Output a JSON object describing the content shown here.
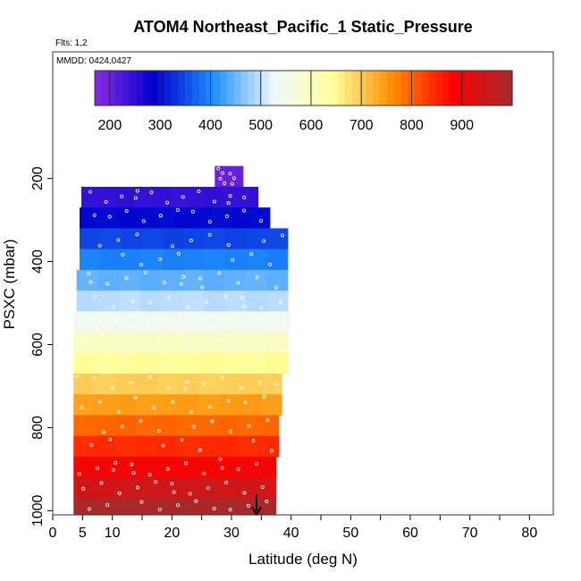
{
  "header": {
    "title": "ATOM4 Northeast_Pacific_1 Static_Pressure",
    "flights": "Flts: 1,2",
    "mmdd": "MMDD: 0424,0427"
  },
  "chart_data": {
    "type": "heatmap",
    "title": "ATOM4 Northeast_Pacific_1 Static_Pressure",
    "xlabel": "Latitude (deg N)",
    "ylabel": "PSXC (mbar)",
    "xlim": [
      0,
      84
    ],
    "ylim": [
      1010,
      -105
    ],
    "x_ticks": [
      0,
      5,
      10,
      20,
      30,
      40,
      50,
      60,
      70,
      80
    ],
    "x_tick_labels": [
      "0",
      "5",
      "10",
      "20",
      "30",
      "40",
      "50",
      "60",
      "70",
      "80"
    ],
    "y_ticks": [
      200,
      400,
      600,
      800,
      1000
    ],
    "y_tick_labels": [
      "200",
      "400",
      "600",
      "800",
      "1000"
    ],
    "colorbar": {
      "range": [
        170,
        1000
      ],
      "ticks": [
        200,
        300,
        400,
        500,
        600,
        700,
        800,
        900
      ],
      "tick_labels": [
        "200",
        "300",
        "400",
        "500",
        "600",
        "700",
        "800",
        "900"
      ],
      "colors": [
        "#8a2be2",
        "#0000cd",
        "#1e90ff",
        "#f0f8ff",
        "#ffff99",
        "#ff8c00",
        "#ff0000",
        "#a52a2a"
      ]
    },
    "pressure_bands": [
      {
        "p_top": 170,
        "p_bot": 220,
        "lat_min": 27.2,
        "lat_max": 32.0,
        "value": 200
      },
      {
        "p_top": 220,
        "p_bot": 270,
        "lat_min": 4.8,
        "lat_max": 34.5,
        "value": 245
      },
      {
        "p_top": 270,
        "p_bot": 320,
        "lat_min": 4.5,
        "lat_max": 36.5,
        "value": 295
      },
      {
        "p_top": 320,
        "p_bot": 370,
        "lat_min": 4.5,
        "lat_max": 39.5,
        "value": 345
      },
      {
        "p_top": 370,
        "p_bot": 420,
        "lat_min": 4.5,
        "lat_max": 39.5,
        "value": 395
      },
      {
        "p_top": 420,
        "p_bot": 470,
        "lat_min": 4.0,
        "lat_max": 39.5,
        "value": 445
      },
      {
        "p_top": 470,
        "p_bot": 520,
        "lat_min": 4.0,
        "lat_max": 39.5,
        "value": 495
      },
      {
        "p_top": 520,
        "p_bot": 570,
        "lat_min": 3.5,
        "lat_max": 39.8,
        "value": 545
      },
      {
        "p_top": 570,
        "p_bot": 620,
        "lat_min": 3.5,
        "lat_max": 39.5,
        "value": 595
      },
      {
        "p_top": 620,
        "p_bot": 670,
        "lat_min": 3.5,
        "lat_max": 39.5,
        "value": 645
      },
      {
        "p_top": 670,
        "p_bot": 720,
        "lat_min": 3.5,
        "lat_max": 38.5,
        "value": 695
      },
      {
        "p_top": 720,
        "p_bot": 770,
        "lat_min": 3.5,
        "lat_max": 38.5,
        "value": 745
      },
      {
        "p_top": 770,
        "p_bot": 820,
        "lat_min": 3.5,
        "lat_max": 38.0,
        "value": 795
      },
      {
        "p_top": 820,
        "p_bot": 870,
        "lat_min": 3.5,
        "lat_max": 38.0,
        "value": 845
      },
      {
        "p_top": 870,
        "p_bot": 920,
        "lat_min": 3.5,
        "lat_max": 37.5,
        "value": 895
      },
      {
        "p_top": 920,
        "p_bot": 970,
        "lat_min": 3.5,
        "lat_max": 37.5,
        "value": 945
      },
      {
        "p_top": 970,
        "p_bot": 1010,
        "lat_min": 3.5,
        "lat_max": 37.5,
        "value": 995
      }
    ],
    "marker": {
      "lat": 34.2,
      "p": 1000,
      "shape": "down-arrow"
    }
  },
  "colors": {
    "frame": "#333333",
    "sample_point": "#ffffff"
  }
}
